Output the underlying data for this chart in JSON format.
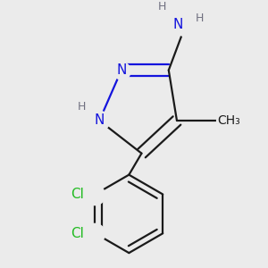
{
  "background_color": "#ebebeb",
  "bond_color": "#1a1a1a",
  "nitrogen_color": "#1414dd",
  "chlorine_color": "#22bb22",
  "hydrogen_color": "#707080",
  "line_width": 1.6,
  "figsize": [
    3.0,
    3.0
  ],
  "dpi": 100,
  "xlim": [
    -1.8,
    1.8
  ],
  "ylim": [
    -2.2,
    1.8
  ]
}
